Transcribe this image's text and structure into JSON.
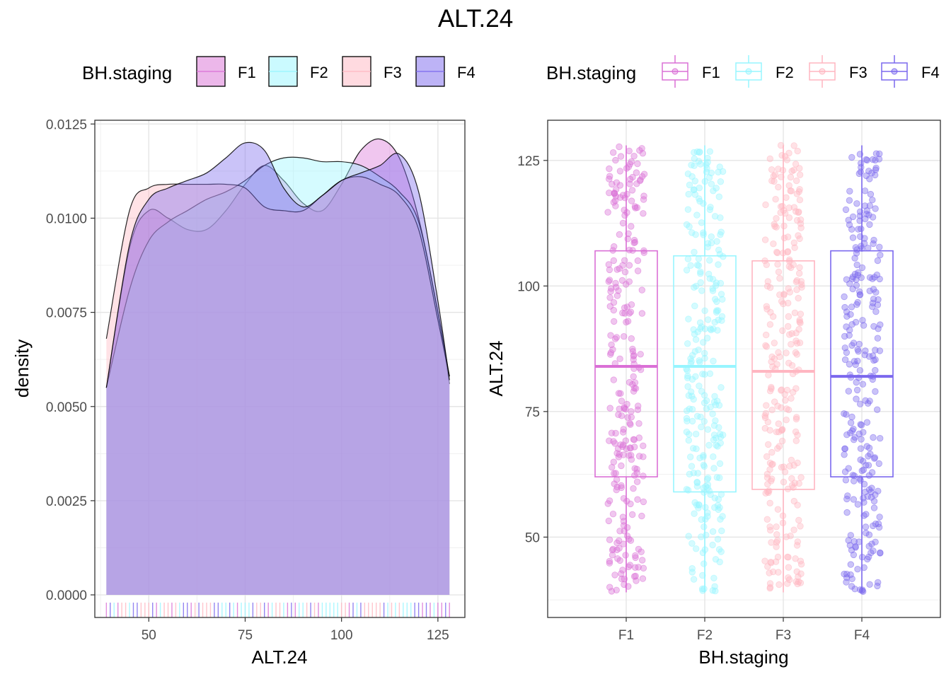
{
  "title": "ALT.24",
  "legend_title": "BH.staging",
  "groups": [
    "F1",
    "F2",
    "F3",
    "F4"
  ],
  "colors": {
    "F1": "#DA70D6",
    "F2": "#97F5FF",
    "F3": "#FFB6C1",
    "F4": "#7B68EE"
  },
  "chart_data": [
    {
      "type": "area",
      "subtype": "density",
      "xlabel": "ALT.24",
      "ylabel": "density",
      "xlim": [
        36,
        132
      ],
      "ylim": [
        -0.0006,
        0.0126
      ],
      "xticks": [
        50,
        75,
        100,
        125
      ],
      "yticks": [
        0.0,
        0.0025,
        0.005,
        0.0075,
        0.01,
        0.0125
      ],
      "ytick_labels": [
        "0.0000",
        "0.0025",
        "0.0050",
        "0.0075",
        "0.0100",
        "0.0125"
      ],
      "rug": true,
      "grid": true,
      "legend_position": "top",
      "series": [
        {
          "name": "F1",
          "x": [
            39,
            45,
            50,
            55,
            60,
            65,
            70,
            75,
            80,
            85,
            90,
            95,
            100,
            105,
            110,
            115,
            120,
            125,
            128
          ],
          "y": [
            0.0055,
            0.0092,
            0.0102,
            0.01,
            0.0097,
            0.0097,
            0.0102,
            0.0109,
            0.0114,
            0.011,
            0.0104,
            0.0102,
            0.0109,
            0.0118,
            0.0121,
            0.0116,
            0.01,
            0.0075,
            0.0056
          ]
        },
        {
          "name": "F2",
          "x": [
            39,
            45,
            50,
            55,
            60,
            65,
            70,
            75,
            80,
            85,
            90,
            95,
            100,
            105,
            110,
            115,
            120,
            125,
            128
          ],
          "y": [
            0.0055,
            0.0081,
            0.0094,
            0.0099,
            0.0102,
            0.0105,
            0.0107,
            0.011,
            0.0114,
            0.0116,
            0.0116,
            0.0115,
            0.0115,
            0.0114,
            0.0111,
            0.0107,
            0.0099,
            0.0075,
            0.0058
          ]
        },
        {
          "name": "F3",
          "x": [
            39,
            45,
            50,
            55,
            60,
            65,
            70,
            75,
            80,
            85,
            90,
            95,
            100,
            105,
            110,
            115,
            120,
            125,
            128
          ],
          "y": [
            0.0068,
            0.0102,
            0.0108,
            0.0109,
            0.0109,
            0.0109,
            0.0109,
            0.0108,
            0.0103,
            0.0102,
            0.0102,
            0.0106,
            0.011,
            0.0111,
            0.0109,
            0.0106,
            0.0097,
            0.0073,
            0.0058
          ]
        },
        {
          "name": "F4",
          "x": [
            39,
            45,
            50,
            55,
            60,
            65,
            70,
            75,
            80,
            85,
            90,
            95,
            100,
            105,
            110,
            115,
            120,
            125,
            128
          ],
          "y": [
            0.0055,
            0.0093,
            0.0105,
            0.0108,
            0.011,
            0.0112,
            0.0116,
            0.012,
            0.0118,
            0.0108,
            0.0103,
            0.0106,
            0.011,
            0.0112,
            0.0114,
            0.0117,
            0.0107,
            0.0078,
            0.0057
          ]
        }
      ]
    },
    {
      "type": "box",
      "subtype": "boxplot_with_jitter",
      "xlabel": "BH.staging",
      "ylabel": "ALT.24",
      "categories": [
        "F1",
        "F2",
        "F3",
        "F4"
      ],
      "ylim": [
        34,
        133
      ],
      "yticks": [
        50,
        75,
        100,
        125
      ],
      "grid": true,
      "legend_position": "top",
      "series": [
        {
          "name": "F1",
          "min": 39,
          "q1": 62,
          "median": 84,
          "q3": 107,
          "max": 128
        },
        {
          "name": "F2",
          "min": 39,
          "q1": 59,
          "median": 84,
          "q3": 106,
          "max": 128
        },
        {
          "name": "F3",
          "min": 39,
          "q1": 59.5,
          "median": 83,
          "q3": 105,
          "max": 128
        },
        {
          "name": "F4",
          "min": 39,
          "q1": 62,
          "median": 82,
          "q3": 107,
          "max": 128
        }
      ]
    }
  ]
}
